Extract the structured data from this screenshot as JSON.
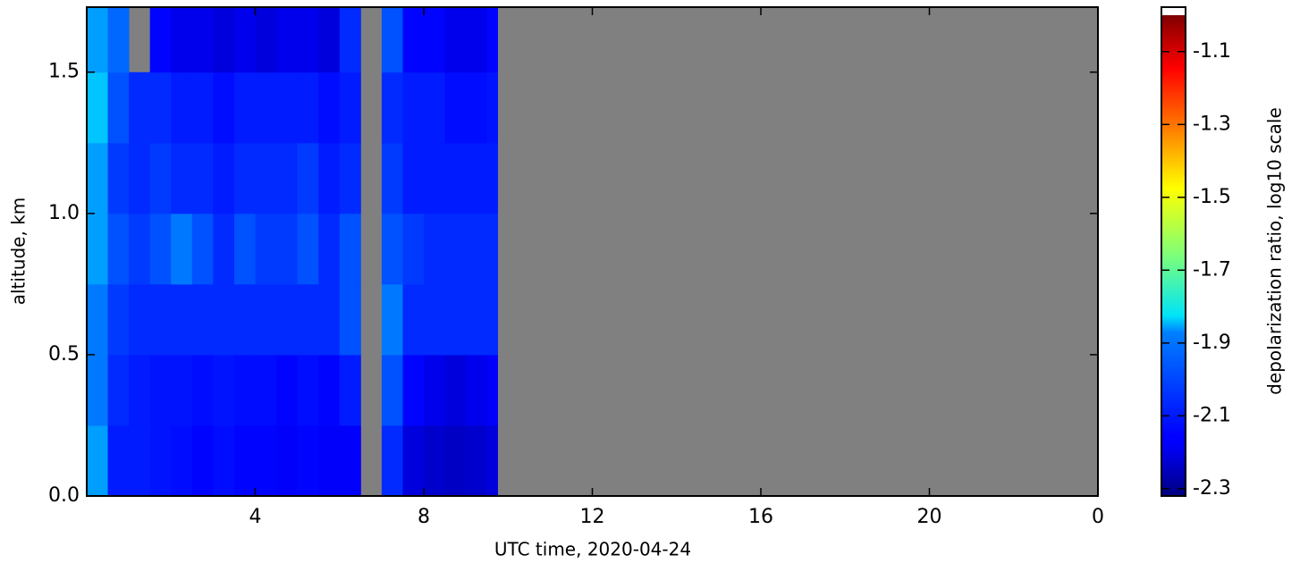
{
  "chart_data": {
    "type": "heatmap",
    "xlabel": "UTC time,  2020-04-24",
    "ylabel": "altitude, km",
    "colorbar_label": "depolarization ratio, log10 scale",
    "colormap": "jet",
    "missing_color": "#808080",
    "xlim": [
      0,
      24
    ],
    "xticks": [
      4,
      8,
      12,
      16,
      20,
      {
        "value": 24,
        "label": "0"
      }
    ],
    "ylim": [
      0,
      1.73
    ],
    "yticks": [
      {
        "value": 0,
        "label": "0.0"
      },
      0.5,
      {
        "value": 1,
        "label": "1.0"
      },
      1.5
    ],
    "clim": [
      -2.32,
      -1.0
    ],
    "cticks": [
      -1.1,
      -1.3,
      -1.5,
      -1.7,
      -1.9,
      -2.1,
      -2.3
    ],
    "x_edges": [
      0,
      0.5,
      1,
      1.5,
      2,
      2.5,
      3,
      3.5,
      4,
      4.5,
      5,
      5.5,
      6,
      6.5,
      7,
      7.5,
      8,
      8.5,
      9,
      9.5,
      9.75
    ],
    "y_edges": [
      0,
      0.25,
      0.5,
      0.75,
      1.0,
      1.25,
      1.5,
      1.73
    ],
    "z": [
      [
        -1.95,
        -2.12,
        -2.12,
        -2.13,
        -2.14,
        -2.15,
        -2.14,
        -2.15,
        -2.15,
        -2.16,
        -2.15,
        -2.16,
        -2.16,
        null,
        -2.1,
        -2.2,
        -2.22,
        -2.23,
        -2.22,
        -2.2
      ],
      [
        -2.0,
        -2.1,
        -2.12,
        -2.13,
        -2.13,
        -2.14,
        -2.13,
        -2.14,
        -2.14,
        -2.15,
        -2.14,
        -2.15,
        -2.12,
        null,
        -2.05,
        -2.15,
        -2.18,
        -2.2,
        -2.18,
        -2.16
      ],
      [
        -2.0,
        -2.08,
        -2.1,
        -2.1,
        -2.1,
        -2.1,
        -2.1,
        -2.1,
        -2.1,
        -2.1,
        -2.1,
        -2.1,
        -2.05,
        null,
        -2.0,
        -2.1,
        -2.1,
        -2.1,
        -2.1,
        -2.1
      ],
      [
        -1.95,
        -2.05,
        -2.08,
        -2.05,
        -2.0,
        -2.05,
        -2.1,
        -2.05,
        -2.08,
        -2.08,
        -2.05,
        -2.1,
        -2.05,
        null,
        -2.05,
        -2.08,
        -2.1,
        -2.1,
        -2.1,
        -2.1
      ],
      [
        -1.95,
        -2.08,
        -2.1,
        -2.08,
        -2.1,
        -2.1,
        -2.12,
        -2.1,
        -2.1,
        -2.1,
        -2.08,
        -2.12,
        -2.1,
        null,
        -2.08,
        -2.12,
        -2.12,
        -2.12,
        -2.12,
        -2.12
      ],
      [
        -1.9,
        -2.05,
        -2.1,
        -2.1,
        -2.12,
        -2.12,
        -2.14,
        -2.12,
        -2.12,
        -2.12,
        -2.12,
        -2.14,
        -2.12,
        null,
        -2.1,
        -2.12,
        -2.12,
        -2.14,
        -2.14,
        -2.13
      ],
      [
        -1.95,
        -2.02,
        null,
        -2.15,
        -2.18,
        -2.18,
        -2.2,
        -2.18,
        -2.2,
        -2.18,
        -2.18,
        -2.2,
        -2.1,
        null,
        -2.05,
        -2.15,
        -2.15,
        -2.18,
        -2.18,
        -2.15
      ]
    ]
  }
}
